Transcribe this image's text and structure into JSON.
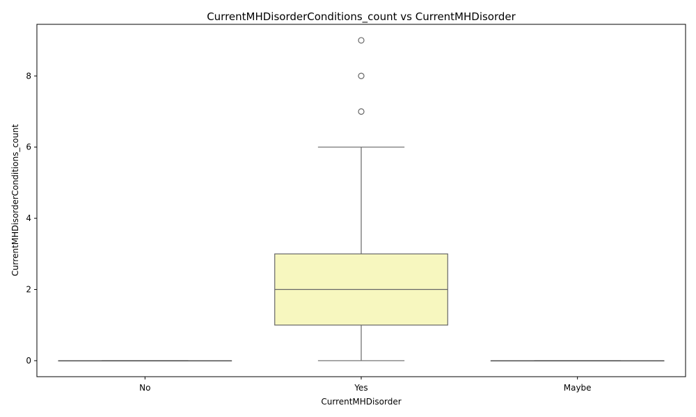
{
  "chart_data": {
    "type": "box",
    "title": "CurrentMHDisorderConditions_count vs CurrentMHDisorder",
    "xlabel": "CurrentMHDisorder",
    "ylabel": "CurrentMHDisorderConditions_count",
    "categories": [
      "No",
      "Yes",
      "Maybe"
    ],
    "ylim": [
      -0.45,
      9.45
    ],
    "yticks": [
      0,
      2,
      4,
      6,
      8
    ],
    "grid": false,
    "box_color": "#f7f7bf",
    "line_color": "#666666",
    "boxes": [
      {
        "category": "No",
        "whisker_low": 0,
        "q1": 0,
        "median": 0,
        "q3": 0,
        "whisker_high": 0,
        "outliers": []
      },
      {
        "category": "Yes",
        "whisker_low": 0,
        "q1": 1,
        "median": 2,
        "q3": 3,
        "whisker_high": 6,
        "outliers": [
          7,
          8,
          9
        ]
      },
      {
        "category": "Maybe",
        "whisker_low": 0,
        "q1": 0,
        "median": 0,
        "q3": 0,
        "whisker_high": 0,
        "outliers": []
      }
    ]
  }
}
